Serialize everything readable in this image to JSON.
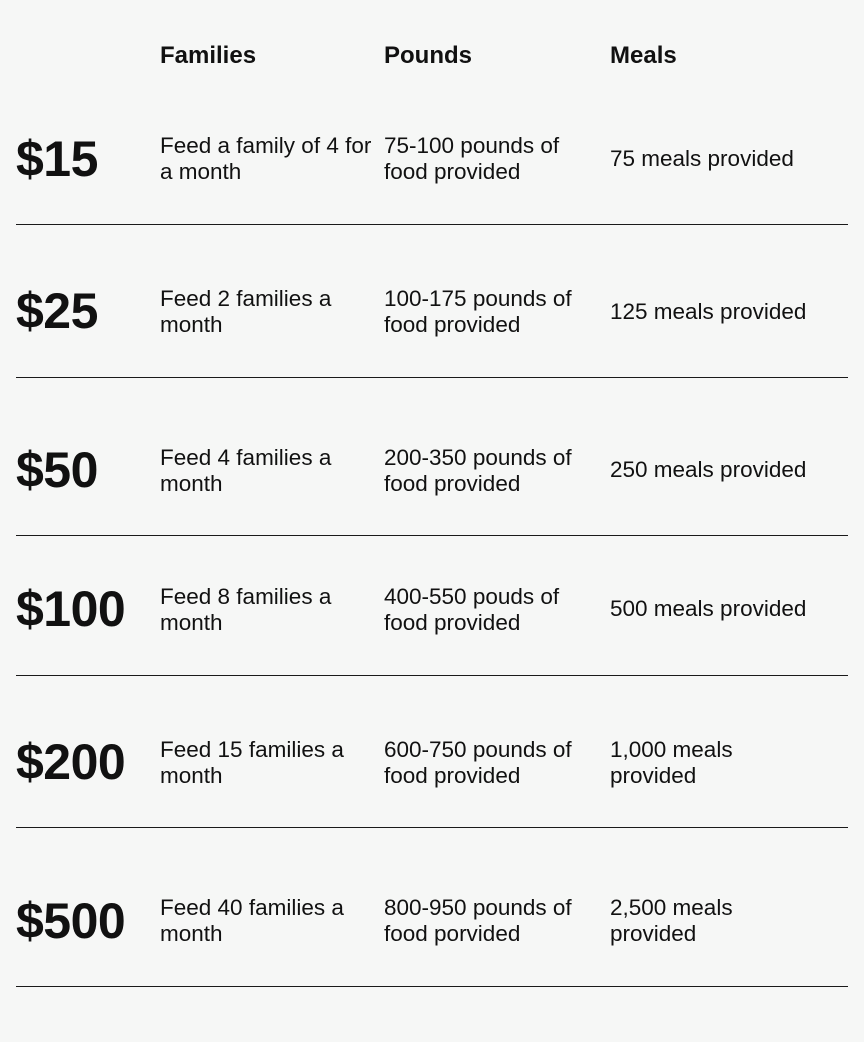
{
  "header": {
    "families": "Families",
    "pounds": "Pounds",
    "meals": "Meals"
  },
  "rows": [
    {
      "amount": "$15",
      "families": "Feed a family of 4 for a month",
      "pounds": "75-100 pounds of food provided",
      "meals": "75 meals provided"
    },
    {
      "amount": "$25",
      "families": "Feed 2 families a month",
      "pounds": "100-175 pounds of food provided",
      "meals": "125 meals provided"
    },
    {
      "amount": "$50",
      "families": "Feed 4 families a month",
      "pounds": "200-350 pounds of food provided",
      "meals": "250 meals provided"
    },
    {
      "amount": "$100",
      "families": "Feed 8 families a month",
      "pounds": "400-550 pouds of food provided",
      "meals": "500 meals provided"
    },
    {
      "amount": "$200",
      "families": "Feed 15 families a month",
      "pounds": "600-750 pounds of food provided",
      "meals": "1,000 meals provided"
    },
    {
      "amount": "$500",
      "families": "Feed 40 families a month",
      "pounds": "800-950 pounds of food porvided",
      "meals": "2,500 meals provided"
    }
  ]
}
